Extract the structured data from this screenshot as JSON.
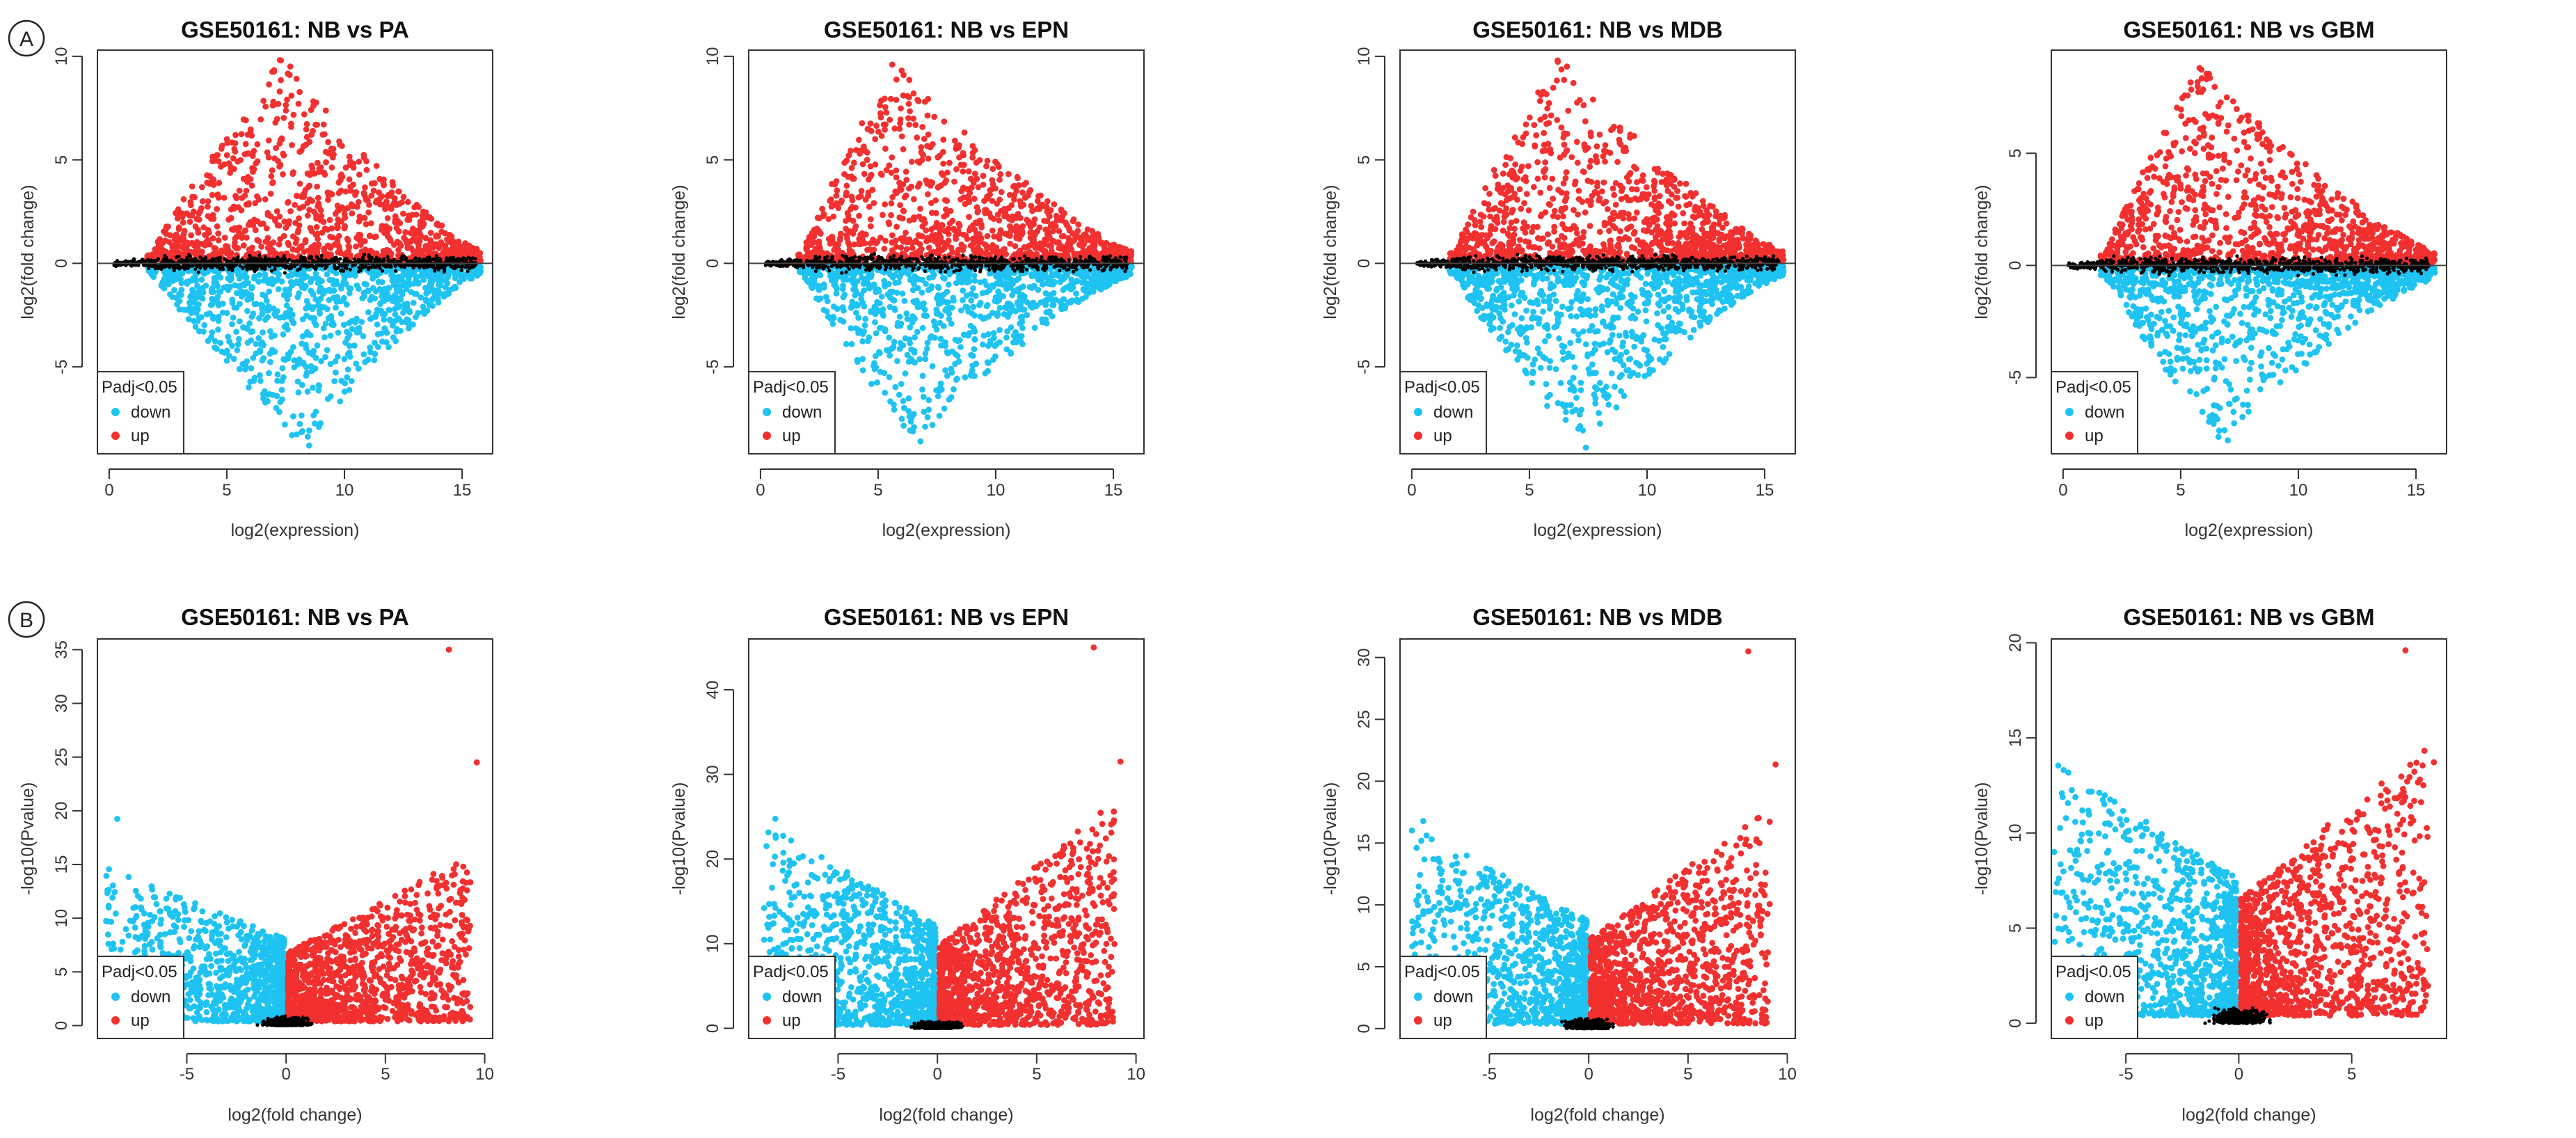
{
  "figure": {
    "panel_labels": [
      "A",
      "B"
    ],
    "colors": {
      "down": "#1ec3f2",
      "up": "#f23030",
      "ns": "#000000",
      "axis": "#333333"
    }
  },
  "chart_data": [
    {
      "type": "scatter",
      "kind": "ma",
      "seed": 11,
      "title": "GSE50161: NB vs PA",
      "xlabel": "log2(expression)",
      "ylabel": "log2(fold change)",
      "xlim": [
        -0.5,
        16.3
      ],
      "ylim": [
        -9.2,
        10.3
      ],
      "xticks": [
        0,
        5,
        10,
        15
      ],
      "yticks": [
        -5,
        0,
        5,
        10
      ],
      "peak_x": 7.3,
      "max_up": 9.8,
      "max_down": 8.8,
      "legend": {
        "title": "Padj<0.05",
        "position": "bottom-left",
        "entries": [
          "down",
          "up"
        ]
      }
    },
    {
      "type": "scatter",
      "kind": "ma",
      "seed": 23,
      "title": "GSE50161: NB vs EPN",
      "xlabel": "log2(expression)",
      "ylabel": "log2(fold change)",
      "xlim": [
        -0.5,
        16.3
      ],
      "ylim": [
        -9.2,
        10.3
      ],
      "xticks": [
        0,
        5,
        10,
        15
      ],
      "yticks": [
        -5,
        0,
        5,
        10
      ],
      "peak_x": 5.6,
      "max_up": 9.6,
      "max_down": 8.6,
      "legend": {
        "title": "Padj<0.05",
        "position": "bottom-left",
        "entries": [
          "down",
          "up"
        ]
      }
    },
    {
      "type": "scatter",
      "kind": "ma",
      "seed": 37,
      "title": "GSE50161: NB vs MDB",
      "xlabel": "log2(expression)",
      "ylabel": "log2(fold change)",
      "xlim": [
        -0.5,
        16.3
      ],
      "ylim": [
        -9.2,
        10.3
      ],
      "xticks": [
        0,
        5,
        10,
        15
      ],
      "yticks": [
        -5,
        0,
        5,
        10
      ],
      "peak_x": 6.2,
      "max_up": 9.8,
      "max_down": 8.9,
      "legend": {
        "title": "Padj<0.05",
        "position": "bottom-left",
        "entries": [
          "down",
          "up"
        ]
      }
    },
    {
      "type": "scatter",
      "kind": "ma",
      "seed": 41,
      "title": "GSE50161: NB vs GBM",
      "xlabel": "log2(expression)",
      "ylabel": "log2(fold change)",
      "xlim": [
        -0.5,
        16.3
      ],
      "ylim": [
        -8.4,
        9.6
      ],
      "xticks": [
        0,
        5,
        10,
        15
      ],
      "yticks": [
        -5,
        0,
        5
      ],
      "peak_x": 5.8,
      "max_up": 8.8,
      "max_down": 7.8,
      "legend": {
        "title": "Padj<0.05",
        "position": "bottom-left",
        "entries": [
          "down",
          "up"
        ]
      }
    },
    {
      "type": "scatter",
      "kind": "volcano",
      "seed": 53,
      "title": "GSE50161: NB vs PA",
      "xlabel": "log2(fold change)",
      "ylabel": "-log10(Pvalue)",
      "xlim": [
        -9.5,
        10.4
      ],
      "ylim": [
        -1.2,
        36
      ],
      "xticks": [
        -5,
        0,
        5,
        10
      ],
      "yticks": [
        0,
        5,
        10,
        15,
        20,
        25,
        30,
        35
      ],
      "max_x": 10,
      "max_y": 35,
      "spread": 0.38,
      "legend": {
        "title": "Padj<0.05",
        "position": "bottom-left",
        "entries": [
          "down",
          "up"
        ]
      }
    },
    {
      "type": "scatter",
      "kind": "volcano",
      "seed": 67,
      "title": "GSE50161: NB vs EPN",
      "xlabel": "log2(fold change)",
      "ylabel": "-log10(Pvalue)",
      "xlim": [
        -9.5,
        10.4
      ],
      "ylim": [
        -1.2,
        46
      ],
      "xticks": [
        -5,
        0,
        5,
        10
      ],
      "yticks": [
        0,
        10,
        20,
        30,
        40
      ],
      "max_x": 9.6,
      "max_y": 45,
      "spread": 0.55,
      "legend": {
        "title": "Padj<0.05",
        "position": "bottom-left",
        "entries": [
          "down",
          "up"
        ]
      }
    },
    {
      "type": "scatter",
      "kind": "volcano",
      "seed": 79,
      "title": "GSE50161: NB vs MDB",
      "xlabel": "log2(fold change)",
      "ylabel": "-log10(Pvalue)",
      "xlim": [
        -9.5,
        10.4
      ],
      "ylim": [
        -0.8,
        31.5
      ],
      "xticks": [
        -5,
        0,
        5,
        10
      ],
      "yticks": [
        0,
        5,
        10,
        15,
        20,
        25,
        30
      ],
      "max_x": 9.8,
      "max_y": 30.5,
      "spread": 0.5,
      "legend": {
        "title": "Padj<0.05",
        "position": "bottom-left",
        "entries": [
          "down",
          "up"
        ]
      }
    },
    {
      "type": "scatter",
      "kind": "volcano",
      "seed": 83,
      "title": "GSE50161: NB vs GBM",
      "xlabel": "log2(fold change)",
      "ylabel": "-log10(Pvalue)",
      "xlim": [
        -8.3,
        9.2
      ],
      "ylim": [
        -0.8,
        20.2
      ],
      "xticks": [
        -5,
        0,
        5
      ],
      "yticks": [
        0,
        5,
        10,
        15,
        20
      ],
      "max_x": 9,
      "max_y": 19.6,
      "spread": 0.62,
      "legend": {
        "title": "Padj<0.05",
        "position": "bottom-left",
        "entries": [
          "down",
          "up"
        ]
      }
    }
  ]
}
